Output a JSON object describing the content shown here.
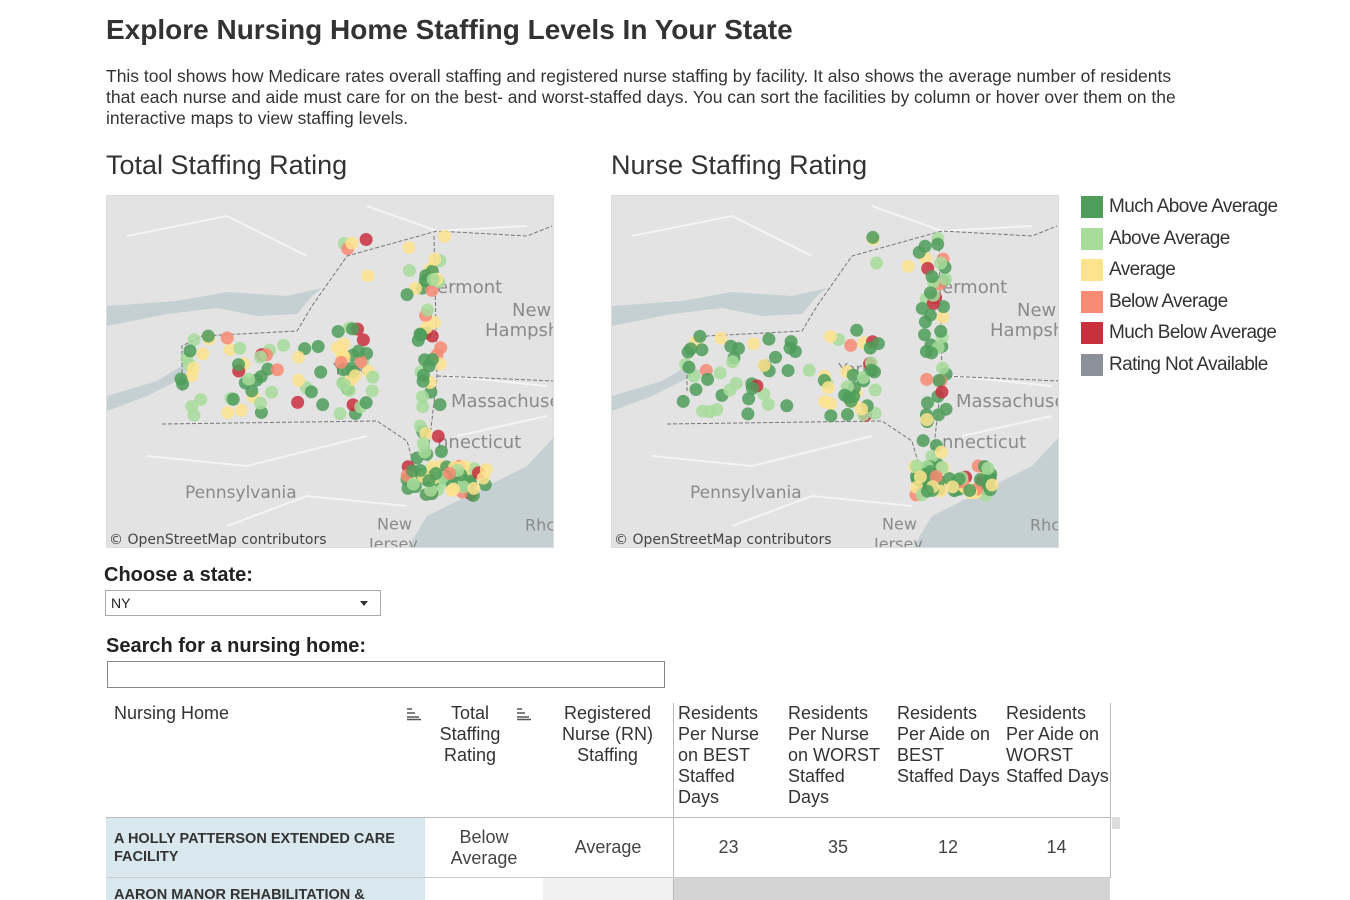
{
  "header": {
    "title": "Explore Nursing Home Staffing Levels In Your State",
    "description": "This tool shows how Medicare rates overall staffing and registered nurse staffing by facility. It also shows the average number of residents that each nurse and aide must care for on the best- and worst-staffed days. You can sort the facilities by column or hover over them on the interactive maps to view staffing levels."
  },
  "maps": [
    {
      "title": "Total Staffing Rating"
    },
    {
      "title": "Nurse Staffing Rating"
    }
  ],
  "map_labels": [
    "ermont",
    "New",
    "Hampsh",
    "Massachuse",
    "nnecticut",
    "Pennsylvania",
    "New",
    "Jersey",
    "Rhc",
    "York",
    "© OpenStreetMap contributors"
  ],
  "legend": [
    {
      "label": "Much Above Average",
      "color": "#4f9d5b"
    },
    {
      "label": "Above Average",
      "color": "#a7dc9b"
    },
    {
      "label": "Average",
      "color": "#fde38e"
    },
    {
      "label": "Below Average",
      "color": "#f78a73"
    },
    {
      "label": "Much Below Average",
      "color": "#c8303e"
    },
    {
      "label": "Rating Not Available",
      "color": "#8c9199"
    }
  ],
  "state_selector": {
    "label": "Choose a state:",
    "value": "NY"
  },
  "search": {
    "label": "Search for a nursing home:"
  },
  "table": {
    "columns": [
      "Nursing Home",
      "Total Staffing Rating",
      "Registered Nurse (RN) Staffing",
      "Residents Per Nurse on BEST Staffed Days",
      "Residents Per Nurse on WORST Staffed Days",
      "Residents Per Aide on BEST Staffed Days",
      "Residents Per Aide on WORST Staffed Days"
    ],
    "rows": [
      {
        "name": "A HOLLY PATTERSON EXTENDED CARE FACILITY",
        "total_staffing": "Below Average",
        "rn_staffing": "Average",
        "nurse_best": 23,
        "nurse_worst": 35,
        "aide_best": 12,
        "aide_worst": 14
      },
      {
        "name": "AARON MANOR REHABILITATION &"
      }
    ]
  }
}
